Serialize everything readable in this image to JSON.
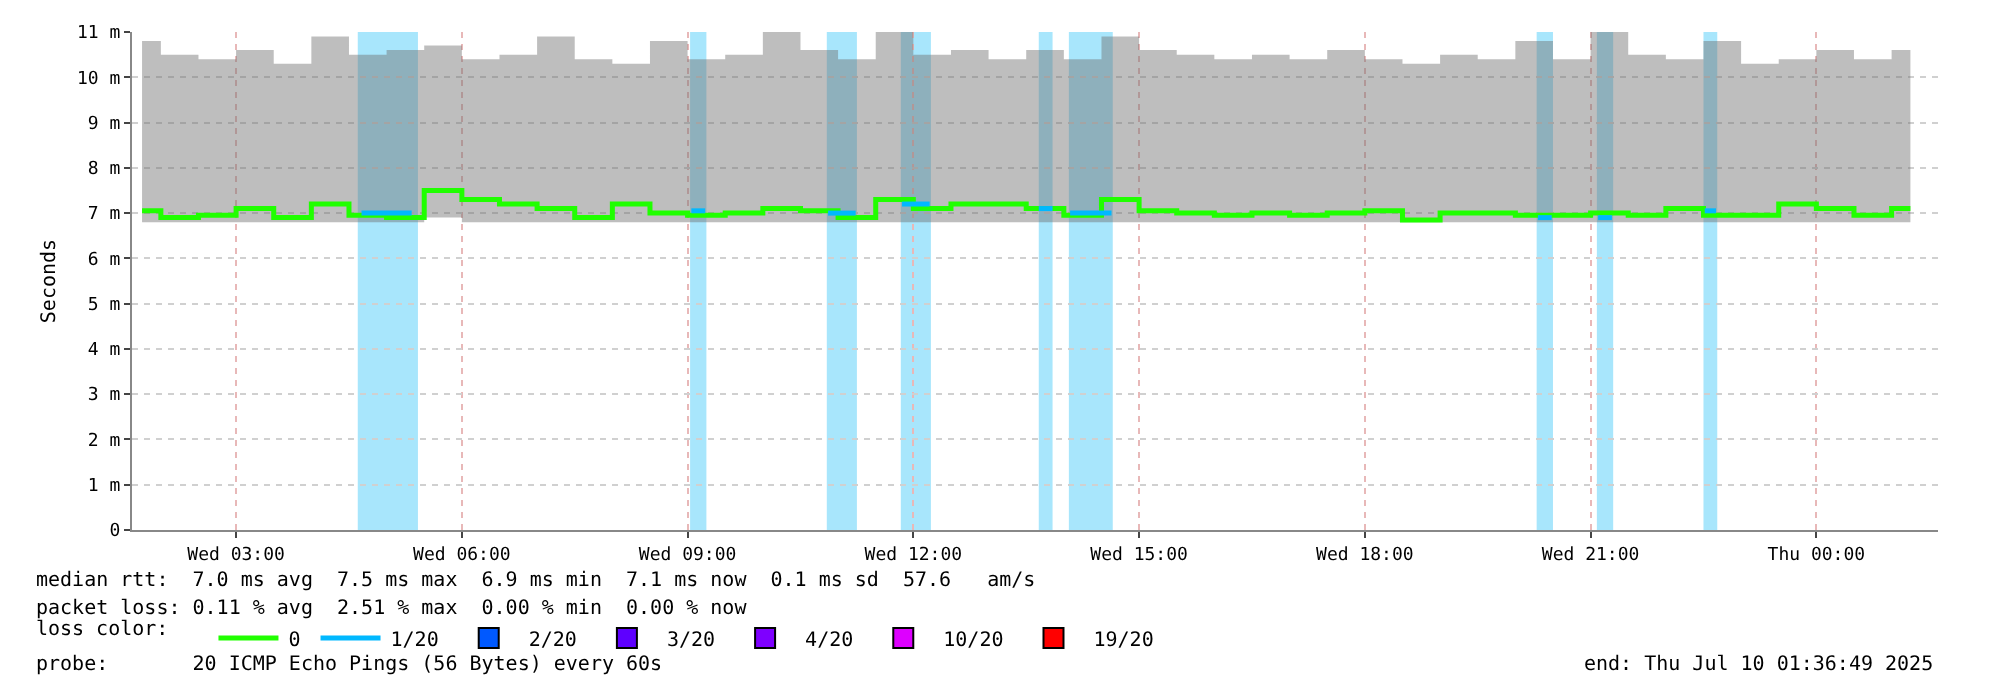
{
  "chart_data": {
    "type": "step",
    "ylabel": "Seconds",
    "legend_title": "loss color:",
    "legend": "bottom",
    "grid": true,
    "marker": "none",
    "line_style": "solid",
    "xlim": [
      "2025-07-09T01:37",
      "2025-07-10T01:37"
    ],
    "xticks": [
      {
        "value": "2025-07-09T03:00",
        "label": "Wed 03:00"
      },
      {
        "value": "2025-07-09T06:00",
        "label": "Wed 06:00"
      },
      {
        "value": "2025-07-09T09:00",
        "label": "Wed 09:00"
      },
      {
        "value": "2025-07-09T12:00",
        "label": "Wed 12:00"
      },
      {
        "value": "2025-07-09T15:00",
        "label": "Wed 15:00"
      },
      {
        "value": "2025-07-09T18:00",
        "label": "Wed 18:00"
      },
      {
        "value": "2025-07-09T21:00",
        "label": "Wed 21:00"
      },
      {
        "value": "2025-07-10T00:00",
        "label": "Thu 00:00"
      }
    ],
    "ylim": [
      0,
      11
    ],
    "yticks": [
      0,
      {
        "value": 1,
        "label": "1 m"
      },
      {
        "value": 2,
        "label": "2 m"
      },
      {
        "value": 3,
        "label": "3 m"
      },
      {
        "value": 4,
        "label": "4 m"
      },
      {
        "value": 5,
        "label": "5 m"
      },
      {
        "value": 6,
        "label": "6 m"
      },
      {
        "value": 7,
        "label": "7 m"
      },
      {
        "value": 8,
        "label": "8 m"
      },
      {
        "value": 9,
        "label": "9 m"
      },
      {
        "value": 10,
        "label": "10 m"
      },
      {
        "value": 11,
        "label": "11 m"
      }
    ],
    "x": [
      "2025-07-09T01:45",
      "2025-07-09T02:15",
      "2025-07-09T02:45",
      "2025-07-09T03:15",
      "2025-07-09T03:45",
      "2025-07-09T04:15",
      "2025-07-09T04:45",
      "2025-07-09T05:15",
      "2025-07-09T05:45",
      "2025-07-09T06:15",
      "2025-07-09T06:45",
      "2025-07-09T07:15",
      "2025-07-09T07:45",
      "2025-07-09T08:15",
      "2025-07-09T08:45",
      "2025-07-09T09:15",
      "2025-07-09T09:45",
      "2025-07-09T10:15",
      "2025-07-09T10:45",
      "2025-07-09T11:15",
      "2025-07-09T11:45",
      "2025-07-09T12:15",
      "2025-07-09T12:45",
      "2025-07-09T13:15",
      "2025-07-09T13:45",
      "2025-07-09T14:15",
      "2025-07-09T14:45",
      "2025-07-09T15:15",
      "2025-07-09T15:45",
      "2025-07-09T16:15",
      "2025-07-09T16:45",
      "2025-07-09T17:15",
      "2025-07-09T17:45",
      "2025-07-09T18:15",
      "2025-07-09T18:45",
      "2025-07-09T19:15",
      "2025-07-09T19:45",
      "2025-07-09T20:15",
      "2025-07-09T20:45",
      "2025-07-09T21:15",
      "2025-07-09T21:45",
      "2025-07-09T22:15",
      "2025-07-09T22:45",
      "2025-07-09T23:15",
      "2025-07-09T23:45",
      "2025-07-10T00:15",
      "2025-07-10T00:45",
      "2025-07-10T01:15"
    ],
    "series": [
      {
        "name": "0",
        "color": "#20ff00",
        "values": [
          7.05,
          6.9,
          6.95,
          7.1,
          6.9,
          7.2,
          6.95,
          6.9,
          7.5,
          7.3,
          7.2,
          7.1,
          6.9,
          7.2,
          7.0,
          6.95,
          7.0,
          7.1,
          7.05,
          6.9,
          7.3,
          7.1,
          7.2,
          7.2,
          7.1,
          6.95,
          7.3,
          7.05,
          7.0,
          6.95,
          7.0,
          6.95,
          7.0,
          7.05,
          6.85,
          7.0,
          7.0,
          6.95,
          6.95,
          7.0,
          6.95,
          7.1,
          6.95,
          6.95,
          7.2,
          7.1,
          6.95,
          7.1
        ],
        "lower": [
          6.8,
          6.8,
          6.8,
          6.8,
          6.8,
          6.8,
          6.8,
          6.8,
          6.9,
          6.8,
          6.8,
          6.8,
          6.8,
          6.8,
          6.8,
          6.8,
          6.8,
          6.8,
          6.8,
          6.8,
          6.8,
          6.8,
          6.8,
          6.8,
          6.8,
          6.8,
          6.8,
          6.8,
          6.8,
          6.8,
          6.8,
          6.8,
          6.8,
          6.8,
          6.8,
          6.8,
          6.8,
          6.8,
          6.8,
          6.8,
          6.8,
          6.8,
          6.8,
          6.8,
          6.8,
          6.8,
          6.8,
          6.8
        ],
        "upper": [
          10.8,
          10.5,
          10.4,
          10.6,
          10.3,
          10.9,
          10.5,
          10.6,
          10.7,
          10.4,
          10.5,
          10.9,
          10.4,
          10.3,
          10.8,
          10.4,
          10.5,
          11.0,
          10.6,
          10.4,
          11.0,
          10.5,
          10.6,
          10.4,
          10.6,
          10.4,
          10.9,
          10.6,
          10.5,
          10.4,
          10.5,
          10.4,
          10.6,
          10.4,
          10.3,
          10.5,
          10.4,
          10.8,
          10.4,
          11.0,
          10.5,
          10.4,
          10.8,
          10.3,
          10.4,
          10.6,
          10.4,
          10.6
        ]
      },
      {
        "name": "1/20",
        "color": "#00b8ff",
        "x": [
          "2025-07-09T04:40",
          "2025-07-09T05:20",
          "2025-07-09T05:25",
          "2025-07-09T09:03",
          "2025-07-09T09:14",
          "2025-07-09T09:15",
          "2025-07-09T10:52",
          "2025-07-09T11:14",
          "2025-07-09T11:15",
          "2025-07-09T11:51",
          "2025-07-09T12:13",
          "2025-07-09T12:14",
          "2025-07-09T13:40",
          "2025-07-09T13:51",
          "2025-07-09T13:52",
          "2025-07-09T14:05",
          "2025-07-09T14:38",
          "2025-07-09T14:39",
          "2025-07-09T20:18",
          "2025-07-09T20:29",
          "2025-07-09T20:30",
          "2025-07-09T21:06",
          "2025-07-09T21:17",
          "2025-07-09T21:18",
          "2025-07-09T22:31",
          "2025-07-09T22:40"
        ],
        "values": [
          7.0,
          7.0,
          null,
          7.05,
          7.05,
          null,
          7.0,
          7.0,
          null,
          7.2,
          7.2,
          null,
          7.1,
          7.1,
          null,
          7.0,
          7.0,
          null,
          6.9,
          6.9,
          null,
          6.9,
          6.9,
          null,
          7.05,
          7.05
        ]
      },
      {
        "name": "2/20",
        "color": "#0059ff",
        "values": [
          null,
          null,
          null,
          null,
          null,
          null,
          null,
          null,
          null,
          null,
          null,
          null,
          null,
          null,
          null,
          null,
          null,
          null,
          null,
          null,
          null,
          null,
          null,
          null,
          null,
          null,
          null,
          null,
          null,
          null,
          null,
          null,
          null,
          null,
          null,
          null,
          null,
          null,
          null,
          null,
          null,
          null,
          null,
          null,
          null,
          null,
          null,
          null
        ]
      },
      {
        "name": "3/20",
        "color": "#5e00ff",
        "values": [
          null,
          null,
          null,
          null,
          null,
          null,
          null,
          null,
          null,
          null,
          null,
          null,
          null,
          null,
          null,
          null,
          null,
          null,
          null,
          null,
          null,
          null,
          null,
          null,
          null,
          null,
          null,
          null,
          null,
          null,
          null,
          null,
          null,
          null,
          null,
          null,
          null,
          null,
          null,
          null,
          null,
          null,
          null,
          null,
          null,
          null,
          null,
          null
        ]
      },
      {
        "name": "4/20",
        "color": "#7e00ff",
        "values": [
          null,
          null,
          null,
          null,
          null,
          null,
          null,
          null,
          null,
          null,
          null,
          null,
          null,
          null,
          null,
          null,
          null,
          null,
          null,
          null,
          null,
          null,
          null,
          null,
          null,
          null,
          null,
          null,
          null,
          null,
          null,
          null,
          null,
          null,
          null,
          null,
          null,
          null,
          null,
          null,
          null,
          null,
          null,
          null,
          null,
          null,
          null,
          null
        ]
      },
      {
        "name": "10/20",
        "color": "#dd00ff",
        "values": [
          null,
          null,
          null,
          null,
          null,
          null,
          null,
          null,
          null,
          null,
          null,
          null,
          null,
          null,
          null,
          null,
          null,
          null,
          null,
          null,
          null,
          null,
          null,
          null,
          null,
          null,
          null,
          null,
          null,
          null,
          null,
          null,
          null,
          null,
          null,
          null,
          null,
          null,
          null,
          null,
          null,
          null,
          null,
          null,
          null,
          null,
          null,
          null
        ]
      },
      {
        "name": "19/20",
        "color": "#ff0000",
        "values": [
          null,
          null,
          null,
          null,
          null,
          null,
          null,
          null,
          null,
          null,
          null,
          null,
          null,
          null,
          null,
          null,
          null,
          null,
          null,
          null,
          null,
          null,
          null,
          null,
          null,
          null,
          null,
          null,
          null,
          null,
          null,
          null,
          null,
          null,
          null,
          null,
          null,
          null,
          null,
          null,
          null,
          null,
          null,
          null,
          null,
          null,
          null,
          null
        ]
      }
    ],
    "bands": [
      {
        "axis": "x",
        "from": "2025-07-09T04:37",
        "to": "2025-07-09T05:25",
        "color": "#a8e6fc"
      },
      {
        "axis": "x",
        "from": "2025-07-09T09:02",
        "to": "2025-07-09T09:15",
        "color": "#a8e6fc"
      },
      {
        "axis": "x",
        "from": "2025-07-09T10:51",
        "to": "2025-07-09T11:15",
        "color": "#a8e6fc"
      },
      {
        "axis": "x",
        "from": "2025-07-09T11:50",
        "to": "2025-07-09T12:14",
        "color": "#a8e6fc"
      },
      {
        "axis": "x",
        "from": "2025-07-09T13:40",
        "to": "2025-07-09T13:51",
        "color": "#a8e6fc"
      },
      {
        "axis": "x",
        "from": "2025-07-09T14:04",
        "to": "2025-07-09T14:39",
        "color": "#a8e6fc"
      },
      {
        "axis": "x",
        "from": "2025-07-09T20:17",
        "to": "2025-07-09T20:30",
        "color": "#a8e6fc"
      },
      {
        "axis": "x",
        "from": "2025-07-09T21:05",
        "to": "2025-07-09T21:18",
        "color": "#a8e6fc"
      },
      {
        "axis": "x",
        "from": "2025-07-09T22:30",
        "to": "2025-07-09T22:41",
        "color": "#a8e6fc"
      }
    ],
    "annotations": [
      "median rtt:  7.0 ms avg  7.5 ms max  6.9 ms min  7.1 ms now  0.1 ms sd  57.6   am/s",
      "packet loss: 0.11 % avg  2.51 % max  0.00 % min  0.00 % now",
      "probe:       20 ICMP Echo Pings (56 Bytes) every 60s",
      "end: Thu Jul 10 01:36:49 2025"
    ]
  }
}
